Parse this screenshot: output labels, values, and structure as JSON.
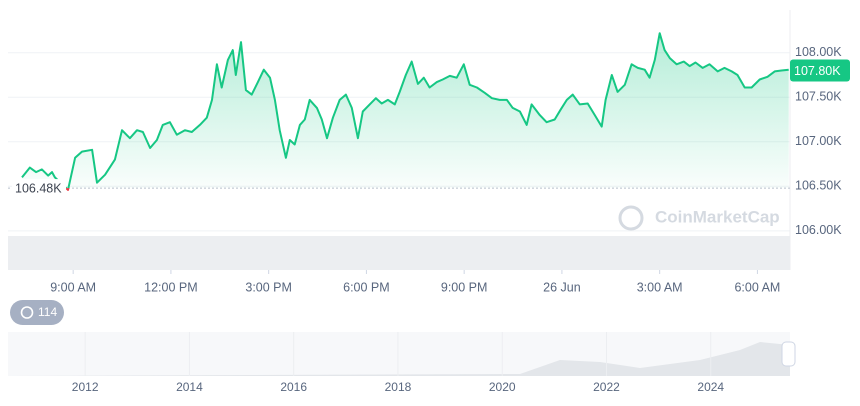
{
  "chart_data": {
    "type": "line",
    "x": [
      7.43,
      7.67,
      7.86,
      8.04,
      8.23,
      8.35,
      8.44,
      8.84,
      9.06,
      9.27,
      9.58,
      9.73,
      9.98,
      10.28,
      10.5,
      10.74,
      10.96,
      11.14,
      11.36,
      11.57,
      11.75,
      11.97,
      12.18,
      12.43,
      12.64,
      12.89,
      13.1,
      13.26,
      13.41,
      13.56,
      13.75,
      13.9,
      13.99,
      14.15,
      14.3,
      14.48,
      14.67,
      14.85,
      15.04,
      15.19,
      15.34,
      15.53,
      15.65,
      15.8,
      15.96,
      16.11,
      16.26,
      16.48,
      16.63,
      16.79,
      16.97,
      17.18,
      17.37,
      17.55,
      17.74,
      17.89,
      18.1,
      18.29,
      18.47,
      18.66,
      18.87,
      19.02,
      19.21,
      19.39,
      19.58,
      19.76,
      19.94,
      20.16,
      20.34,
      20.56,
      20.77,
      20.99,
      21.17,
      21.39,
      21.63,
      21.85,
      22.09,
      22.31,
      22.49,
      22.71,
      22.92,
      23.07,
      23.32,
      23.53,
      23.78,
      23.96,
      24.15,
      24.33,
      24.55,
      24.79,
      25.01,
      25.22,
      25.34,
      25.53,
      25.71,
      25.93,
      26.14,
      26.33,
      26.54,
      26.69,
      26.85,
      27.0,
      27.15,
      27.31,
      27.52,
      27.74,
      27.92,
      28.1,
      28.32,
      28.53,
      28.78,
      28.99,
      29.21,
      29.39,
      29.61,
      29.82,
      30.07,
      30.31,
      30.53,
      30.74,
      30.96
    ],
    "series": [
      {
        "color": "#16c784",
        "values": [
          106600,
          106710,
          106660,
          106690,
          106620,
          106660,
          106600,
          106460,
          106820,
          106890,
          106910,
          106540,
          106630,
          106800,
          107130,
          107040,
          107130,
          107110,
          106930,
          107020,
          107190,
          107220,
          107080,
          107130,
          107110,
          107190,
          107270,
          107470,
          107870,
          107610,
          107920,
          108030,
          107750,
          108120,
          107580,
          107530,
          107670,
          107810,
          107720,
          107470,
          107130,
          106820,
          107020,
          106970,
          107190,
          107250,
          107470,
          107380,
          107250,
          107040,
          107270,
          107470,
          107530,
          107380,
          107040,
          107340,
          107420,
          107490,
          107430,
          107470,
          107420,
          107560,
          107750,
          107900,
          107650,
          107720,
          107610,
          107670,
          107700,
          107740,
          107720,
          107870,
          107640,
          107610,
          107550,
          107490,
          107470,
          107470,
          107380,
          107340,
          107190,
          107420,
          107300,
          107220,
          107250,
          107360,
          107470,
          107530,
          107420,
          107430,
          107300,
          107170,
          107470,
          107750,
          107560,
          107640,
          107870,
          107830,
          107810,
          107720,
          107920,
          108220,
          108030,
          107940,
          107870,
          107900,
          107850,
          107890,
          107830,
          107870,
          107790,
          107830,
          107790,
          107750,
          107610,
          107610,
          107700,
          107730,
          107790,
          107800,
          107810
        ]
      }
    ],
    "below_color": "#ea3943",
    "xlim": [
      7,
      31
    ],
    "xticks": [
      {
        "value": 9,
        "label": "9:00 AM"
      },
      {
        "value": 12,
        "label": "12:00 PM"
      },
      {
        "value": 15,
        "label": "3:00 PM"
      },
      {
        "value": 18,
        "label": "6:00 PM"
      },
      {
        "value": 21,
        "label": "9:00 PM"
      },
      {
        "value": 24,
        "label": "26 Jun"
      },
      {
        "value": 27,
        "label": "3:00 AM"
      },
      {
        "value": 30,
        "label": "6:00 AM"
      }
    ],
    "ylim": [
      105560,
      108480
    ],
    "yticks": [
      {
        "value": 106000,
        "label": "106.00K"
      },
      {
        "value": 106500,
        "label": "106.50K"
      },
      {
        "value": 107000,
        "label": "107.00K"
      },
      {
        "value": 107500,
        "label": "107.50K"
      },
      {
        "value": 108000,
        "label": "108.00K"
      }
    ],
    "grid": true,
    "reference": {
      "value": 106480,
      "label": "106.48K"
    },
    "price_tag": {
      "value": 107800,
      "label": "107.80K"
    },
    "watermark": "CoinMarketCap",
    "badge": "114",
    "overview": {
      "xlim": [
        2010.52,
        2025.52
      ],
      "xticks": [
        2012,
        2014,
        2016,
        2018,
        2020,
        2022,
        2024
      ]
    }
  }
}
